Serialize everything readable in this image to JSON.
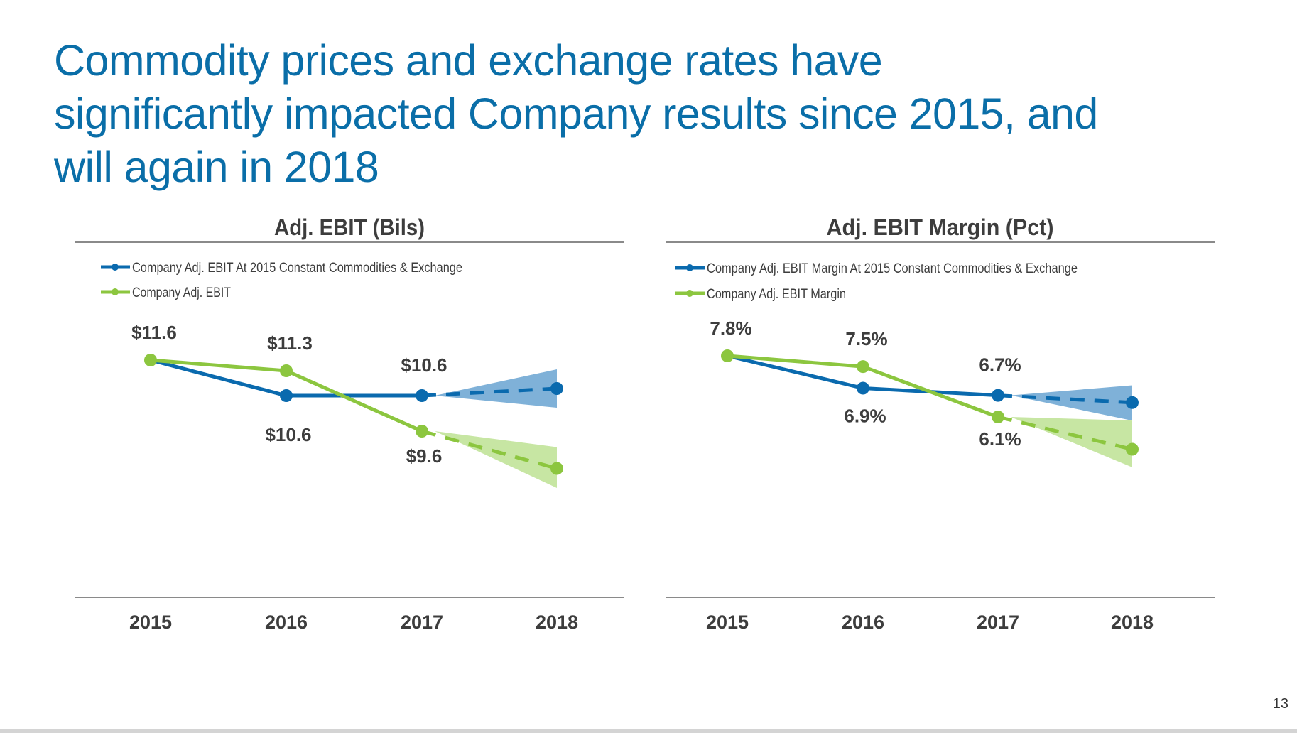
{
  "slide": {
    "title_lines": [
      "Commodity prices and exchange rates have",
      "significantly impacted Company results since 2015, and",
      "will again in 2018"
    ],
    "page_number": "13"
  },
  "colors": {
    "title": "#0a6ea8",
    "blue": "#0a6aae",
    "green": "#8cc63f",
    "blue_band": "#7fb1d8",
    "green_band": "#c7e6a3",
    "text": "#3d3d3d"
  },
  "chart_data": [
    {
      "type": "line",
      "title": "Adj. EBIT (Bils)",
      "categories": [
        "2015",
        "2016",
        "2017",
        "2018"
      ],
      "legend_placement": "top-left",
      "grid": false,
      "ylim": [
        7.5,
        12.2
      ],
      "series": [
        {
          "name": "Company Adj. EBIT At 2015 Constant Commodities & Exchange",
          "color": "#0a6aae",
          "values": [
            11.6,
            10.6,
            10.6,
            10.8
          ],
          "labels": [
            "",
            "$10.6",
            "$10.6",
            ""
          ],
          "projection_range_2018": [
            10.26,
            11.34
          ]
        },
        {
          "name": "Company Adj. EBIT",
          "color": "#8cc63f",
          "values": [
            11.6,
            11.3,
            9.6,
            8.55
          ],
          "labels": [
            "$11.6",
            "$11.3",
            "$9.6",
            ""
          ],
          "projection_range_2018": [
            8.0,
            9.15
          ]
        }
      ]
    },
    {
      "type": "line",
      "title": "Adj. EBIT Margin (Pct)",
      "categories": [
        "2015",
        "2016",
        "2017",
        "2018"
      ],
      "legend_placement": "top-left",
      "grid": false,
      "ylim": [
        4.0,
        8.4
      ],
      "series": [
        {
          "name": "Company Adj. EBIT Margin At 2015 Constant Commodities & Exchange",
          "color": "#0a6aae",
          "values": [
            7.8,
            6.9,
            6.7,
            6.5
          ],
          "labels": [
            "",
            "6.9%",
            "6.7%",
            ""
          ],
          "projection_range_2018": [
            6.0,
            6.98
          ]
        },
        {
          "name": "Company Adj. EBIT Margin",
          "color": "#8cc63f",
          "values": [
            7.8,
            7.5,
            6.1,
            5.2
          ],
          "labels": [
            "7.8%",
            "7.5%",
            "6.1%",
            ""
          ],
          "projection_range_2018": [
            4.7,
            6.0
          ]
        }
      ]
    }
  ]
}
